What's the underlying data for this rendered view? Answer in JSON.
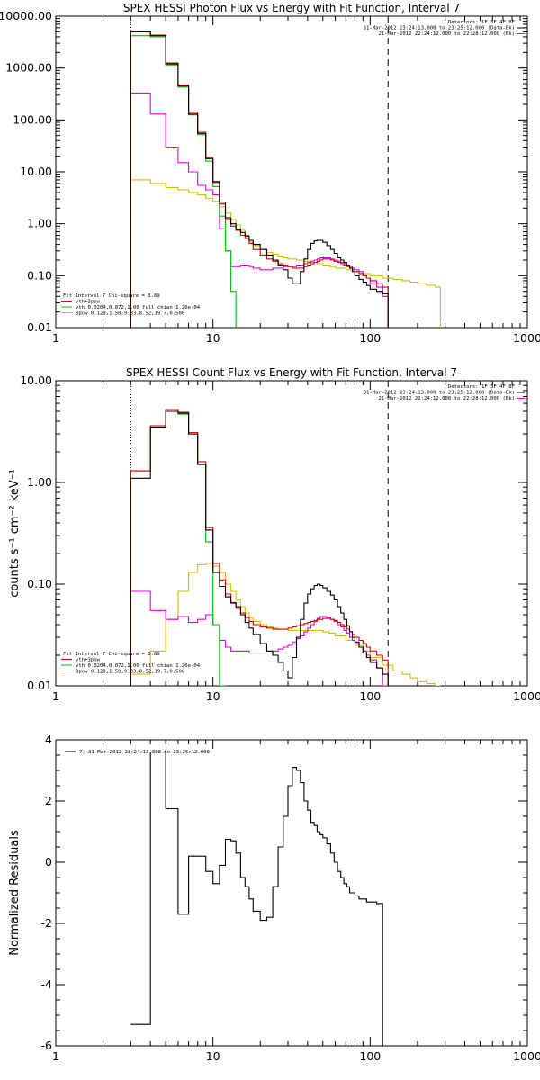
{
  "chart_data": [
    {
      "type": "line",
      "title": "SPEX HESSI Photon Flux vs Energy with Fit Function, Interval 7",
      "xscale": "log",
      "yscale": "log",
      "xlim": [
        1,
        1000
      ],
      "ylim": [
        0.01,
        10000
      ],
      "xticks": [
        "1",
        "10",
        "100",
        "1000"
      ],
      "yticks": [
        "0.01",
        "0.10",
        "1.00",
        "10.00",
        "100.00",
        "1000.00",
        "10000.00"
      ],
      "header_lines": [
        "Detectors: 1F 3F 4F 8F",
        "31-Mar-2012 23:24:13.000 to 23:25:12.000 (Data-Bk)",
        "21-Mar-2012 22:24:12.000 to 22:28:12.000 (Bk)"
      ],
      "legend_lines": [
        "Fit Interval  7   Chi-square = 3.89",
        "vth+3pow",
        "vth 0.0204,0.872,1.00  full chian 1.26e-04",
        "3pow 0.128,1.50,9.33,8.52,19.7,0.500"
      ],
      "vlines": [
        3,
        130
      ],
      "series": [
        {
          "name": "Data-Bk",
          "color": "#000000",
          "step": true,
          "edges": [
            3,
            4,
            5,
            6,
            7,
            8,
            9,
            10,
            11,
            12,
            13,
            14,
            15,
            16,
            17,
            18,
            20,
            22,
            24,
            26,
            28,
            30,
            32,
            34,
            36,
            38,
            40,
            42,
            44,
            46,
            48,
            50,
            53,
            56,
            59,
            62,
            65,
            68,
            71,
            74,
            77,
            80,
            85,
            90,
            95,
            100,
            110,
            120,
            130
          ],
          "values": [
            5000,
            4200,
            1200,
            450,
            130,
            55,
            18,
            6.5,
            2.6,
            1.3,
            1.0,
            0.78,
            0.68,
            0.58,
            0.48,
            0.4,
            0.32,
            0.25,
            0.2,
            0.16,
            0.13,
            0.09,
            0.07,
            0.07,
            0.12,
            0.21,
            0.32,
            0.42,
            0.47,
            0.48,
            0.48,
            0.44,
            0.38,
            0.32,
            0.27,
            0.22,
            0.2,
            0.18,
            0.16,
            0.14,
            0.12,
            0.1,
            0.085,
            0.075,
            0.065,
            0.055,
            0.05,
            0.045
          ]
        },
        {
          "name": "vth+3pow",
          "color": "#e00000",
          "step": true,
          "edges": [
            3,
            4,
            5,
            6,
            7,
            8,
            9,
            10,
            11,
            12,
            13,
            14,
            15,
            16,
            17,
            18,
            20,
            22,
            24,
            26,
            28,
            30,
            32,
            34,
            36,
            38,
            40,
            42,
            44,
            46,
            48,
            50,
            53,
            56,
            59,
            62,
            65,
            68,
            71,
            74,
            77,
            80,
            85,
            90,
            95,
            100,
            110,
            120,
            130
          ],
          "values": [
            5000,
            4300,
            1250,
            470,
            140,
            58,
            19,
            6.2,
            2.4,
            1.2,
            0.9,
            0.75,
            0.6,
            0.52,
            0.42,
            0.32,
            0.25,
            0.21,
            0.19,
            0.17,
            0.16,
            0.15,
            0.14,
            0.14,
            0.14,
            0.15,
            0.16,
            0.17,
            0.18,
            0.19,
            0.2,
            0.21,
            0.21,
            0.2,
            0.19,
            0.18,
            0.17,
            0.16,
            0.15,
            0.14,
            0.13,
            0.12,
            0.11,
            0.1,
            0.09,
            0.08,
            0.07,
            0.06
          ]
        },
        {
          "name": "vth",
          "color": "#00c000",
          "step": true,
          "edges": [
            3,
            4,
            5,
            6,
            7,
            8,
            9,
            10,
            11,
            12,
            13,
            14
          ],
          "values": [
            4200,
            4000,
            1150,
            430,
            125,
            52,
            16,
            5.2,
            1.4,
            0.3,
            0.05
          ]
        },
        {
          "name": "3pow",
          "color": "#e000e0",
          "step": true,
          "edges": [
            3,
            4,
            5,
            6,
            7,
            8,
            9,
            10,
            11,
            12,
            13,
            14,
            15,
            16,
            17,
            18,
            20,
            22,
            24,
            26,
            28,
            30,
            32,
            34,
            36,
            38,
            40,
            42,
            44,
            46,
            48,
            50,
            53,
            56,
            59,
            62,
            65,
            68,
            71,
            74,
            77,
            80,
            85,
            90,
            95,
            100,
            110,
            120,
            130
          ],
          "values": [
            330,
            130,
            30,
            15,
            10,
            5.5,
            4.5,
            3.6,
            0.8,
            0.3,
            0.15,
            0.15,
            0.16,
            0.16,
            0.15,
            0.14,
            0.13,
            0.13,
            0.14,
            0.14,
            0.15,
            0.15,
            0.15,
            0.16,
            0.16,
            0.17,
            0.18,
            0.19,
            0.2,
            0.21,
            0.22,
            0.22,
            0.22,
            0.21,
            0.2,
            0.19,
            0.18,
            0.17,
            0.16,
            0.15,
            0.14,
            0.13,
            0.12,
            0.1,
            0.09,
            0.07,
            0.06,
            0.04
          ]
        },
        {
          "name": "3pow-continuum",
          "color": "#d0c000",
          "step": true,
          "edges": [
            3,
            4,
            5,
            6,
            7,
            8,
            9,
            10,
            11,
            12,
            13,
            14,
            15,
            16,
            17,
            18,
            20,
            22,
            24,
            26,
            28,
            30,
            34,
            38,
            42,
            46,
            50,
            55,
            60,
            70,
            80,
            90,
            100,
            120,
            140,
            160,
            180,
            200,
            230,
            260,
            280
          ],
          "values": [
            7,
            6,
            5,
            4.5,
            4,
            3.6,
            3.1,
            2.7,
            2.1,
            1.6,
            1.2,
            0.95,
            0.75,
            0.6,
            0.45,
            0.38,
            0.32,
            0.28,
            0.26,
            0.24,
            0.22,
            0.21,
            0.2,
            0.19,
            0.18,
            0.17,
            0.16,
            0.15,
            0.14,
            0.13,
            0.12,
            0.11,
            0.1,
            0.09,
            0.085,
            0.08,
            0.075,
            0.07,
            0.065,
            0.06
          ]
        }
      ]
    },
    {
      "type": "line",
      "title": "SPEX HESSI Count Flux vs Energy with Fit Function, Interval 7",
      "xscale": "log",
      "yscale": "log",
      "xlim": [
        1,
        1000
      ],
      "ylim": [
        0.01,
        10
      ],
      "xticks": [
        "1",
        "10",
        "100",
        "1000"
      ],
      "yticks": [
        "0.01",
        "0.10",
        "1.00",
        "10.00"
      ],
      "ylabel": "counts s⁻¹ cm⁻² keV⁻¹",
      "header_lines": [
        "Detectors: 1F 3F 4F 8F",
        "31-Mar-2012 23:24:13.000 to 23:25:12.000 (Data-Bk)",
        "21-Mar-2012 22:24:12.000 to 22:28:12.000 (Bk)"
      ],
      "legend_lines": [
        "Fit Interval  7   Chi-square = 3.89",
        "vth+3pow",
        "vth 0.0204,0.872,1.00  full chian 1.26e-04",
        "3pow 0.128,1.50,9.33,8.52,19.7,0.500"
      ],
      "vlines": [
        3,
        130
      ],
      "series": [
        {
          "name": "Data-Bk",
          "color": "#000000",
          "step": true,
          "edges": [
            3,
            4,
            5,
            6,
            7,
            8,
            9,
            10,
            11,
            12,
            13,
            14,
            15,
            16,
            17,
            18,
            20,
            22,
            24,
            26,
            28,
            30,
            32,
            34,
            36,
            38,
            40,
            42,
            44,
            46,
            48,
            50,
            53,
            56,
            59,
            62,
            65,
            68,
            71,
            74,
            77,
            80,
            85,
            90,
            95,
            100,
            110,
            120,
            130
          ],
          "values": [
            1.1,
            3.5,
            5.0,
            4.8,
            3.0,
            1.5,
            0.34,
            0.13,
            0.095,
            0.075,
            0.065,
            0.06,
            0.05,
            0.042,
            0.037,
            0.032,
            0.026,
            0.022,
            0.02,
            0.017,
            0.014,
            0.012,
            0.019,
            0.03,
            0.045,
            0.065,
            0.08,
            0.09,
            0.097,
            0.1,
            0.097,
            0.092,
            0.085,
            0.078,
            0.07,
            0.06,
            0.052,
            0.045,
            0.039,
            0.034,
            0.03,
            0.027,
            0.024,
            0.021,
            0.019,
            0.017,
            0.015,
            0.013
          ]
        },
        {
          "name": "vth+3pow",
          "color": "#e00000",
          "step": true,
          "edges": [
            3,
            4,
            5,
            6,
            7,
            8,
            9,
            10,
            11,
            12,
            13,
            14,
            15,
            16,
            17,
            18,
            20,
            22,
            24,
            26,
            28,
            30,
            32,
            34,
            36,
            38,
            40,
            42,
            44,
            46,
            48,
            50,
            53,
            56,
            59,
            62,
            65,
            68,
            71,
            74,
            77,
            80,
            85,
            90,
            95,
            100,
            110,
            120,
            130
          ],
          "values": [
            1.3,
            3.6,
            5.2,
            4.9,
            3.1,
            1.6,
            0.36,
            0.16,
            0.11,
            0.08,
            0.066,
            0.058,
            0.052,
            0.047,
            0.043,
            0.04,
            0.038,
            0.037,
            0.036,
            0.036,
            0.036,
            0.037,
            0.038,
            0.039,
            0.04,
            0.041,
            0.042,
            0.043,
            0.044,
            0.045,
            0.045,
            0.046,
            0.046,
            0.045,
            0.044,
            0.042,
            0.04,
            0.038,
            0.036,
            0.034,
            0.032,
            0.03,
            0.028,
            0.026,
            0.024,
            0.022,
            0.02,
            0.018
          ]
        },
        {
          "name": "vth",
          "color": "#00c000",
          "step": true,
          "edges": [
            3,
            4,
            5,
            6,
            7,
            8,
            9,
            10,
            11,
            12
          ],
          "values": [
            1.3,
            3.5,
            5.0,
            4.7,
            3.0,
            1.5,
            0.26,
            0.04,
            0.01
          ]
        },
        {
          "name": "3pow",
          "color": "#e000e0",
          "step": true,
          "edges": [
            3,
            4,
            5,
            6,
            7,
            8,
            9,
            10,
            11,
            12,
            13,
            14,
            15,
            16,
            17,
            18,
            20,
            22,
            24,
            26,
            28,
            30,
            32,
            34,
            36,
            38,
            40,
            42,
            44,
            46,
            48,
            50,
            53,
            56,
            59,
            62,
            65,
            68,
            71,
            74,
            77,
            80,
            85,
            90,
            95,
            100,
            110,
            120,
            130
          ],
          "values": [
            0.085,
            0.055,
            0.045,
            0.048,
            0.042,
            0.045,
            0.05,
            0.04,
            0.028,
            0.024,
            0.022,
            0.022,
            0.022,
            0.022,
            0.021,
            0.021,
            0.021,
            0.021,
            0.022,
            0.023,
            0.024,
            0.025,
            0.027,
            0.029,
            0.031,
            0.034,
            0.037,
            0.04,
            0.043,
            0.046,
            0.048,
            0.048,
            0.047,
            0.045,
            0.043,
            0.04,
            0.038,
            0.035,
            0.033,
            0.03,
            0.028,
            0.026,
            0.024,
            0.022,
            0.02,
            0.018,
            0.015,
            0.01
          ]
        },
        {
          "name": "3pow-continuum",
          "color": "#d0c000",
          "step": true,
          "edges": [
            3,
            4,
            5,
            6,
            7,
            8,
            9,
            10,
            11,
            12,
            13,
            14,
            15,
            16,
            17,
            18,
            20,
            22,
            24,
            26,
            28,
            30,
            34,
            38,
            42,
            46,
            50,
            55,
            60,
            70,
            80,
            90,
            100,
            120,
            140,
            160,
            180,
            200,
            230,
            260,
            280
          ],
          "values": [
            0.013,
            0.022,
            0.045,
            0.085,
            0.13,
            0.155,
            0.16,
            0.15,
            0.13,
            0.1,
            0.085,
            0.07,
            0.06,
            0.052,
            0.047,
            0.043,
            0.04,
            0.038,
            0.037,
            0.036,
            0.036,
            0.035,
            0.035,
            0.035,
            0.035,
            0.035,
            0.034,
            0.033,
            0.031,
            0.028,
            0.025,
            0.022,
            0.019,
            0.016,
            0.014,
            0.013,
            0.012,
            0.011,
            0.0105,
            0.01
          ]
        }
      ]
    },
    {
      "type": "line",
      "title": "",
      "xscale": "log",
      "yscale": "linear",
      "xlim": [
        1,
        1000
      ],
      "ylim": [
        -6,
        4
      ],
      "xticks": [
        "1",
        "10",
        "100",
        "1000"
      ],
      "yticks": [
        "-6",
        "-4",
        "-2",
        "0",
        "2",
        "4"
      ],
      "ylabel": "Normalized Residuals",
      "legend_lines": [
        "7: 31-Mar-2012 23:24:13.000 to 23:25:12.000"
      ],
      "series": [
        {
          "name": "7: 31-Mar-2012 23:24:13.000 to 23:25:12.000",
          "color": "#000000",
          "step": true,
          "edges": [
            3,
            4,
            5,
            6,
            7,
            8,
            9,
            10,
            11,
            12,
            13,
            14,
            15,
            16,
            17,
            18,
            20,
            22,
            24,
            26,
            28,
            30,
            32,
            34,
            36,
            38,
            40,
            42,
            44,
            46,
            48,
            50,
            53,
            56,
            59,
            62,
            65,
            68,
            71,
            74,
            77,
            80,
            85,
            90,
            95,
            100,
            110,
            120,
            130
          ],
          "values": [
            -5.3,
            3.6,
            1.75,
            -1.7,
            0.2,
            0.2,
            -0.3,
            -0.7,
            -0.1,
            0.75,
            0.7,
            0.3,
            -0.5,
            -0.8,
            -1.2,
            -1.6,
            -1.9,
            -1.8,
            -0.8,
            0.5,
            1.5,
            2.5,
            3.1,
            3.0,
            2.6,
            2.0,
            1.7,
            1.3,
            1.2,
            1.0,
            0.9,
            0.8,
            0.6,
            0.3,
            0.0,
            -0.3,
            -0.5,
            -0.7,
            -0.8,
            -1.0,
            -1.0,
            -1.1,
            -1.2,
            -1.2,
            -1.3,
            -1.3,
            -1.35,
            -6.0
          ]
        }
      ]
    }
  ]
}
